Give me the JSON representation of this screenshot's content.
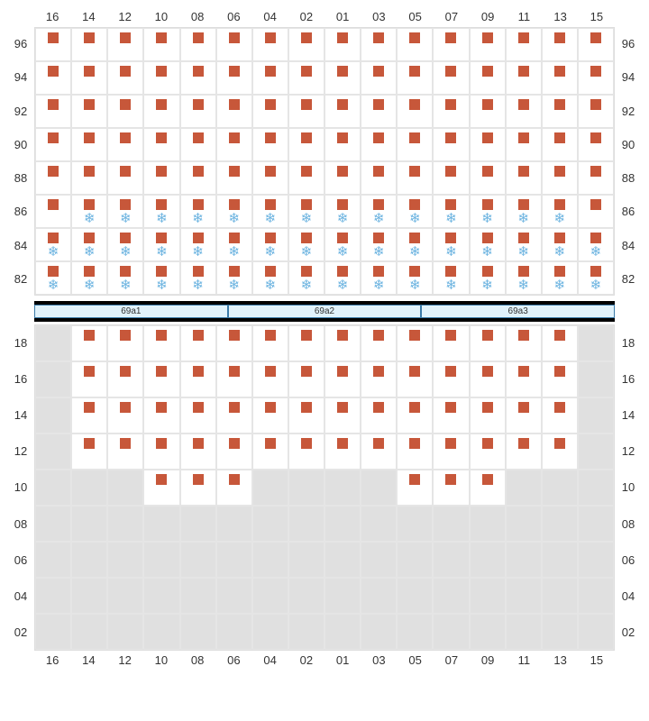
{
  "columns": [
    "16",
    "14",
    "12",
    "10",
    "08",
    "06",
    "04",
    "02",
    "01",
    "03",
    "05",
    "07",
    "09",
    "11",
    "13",
    "15"
  ],
  "top_rows": [
    "96",
    "94",
    "92",
    "90",
    "88",
    "86",
    "84",
    "82"
  ],
  "bottom_rows": [
    "18",
    "16",
    "14",
    "12",
    "10",
    "08",
    "06",
    "04",
    "02"
  ],
  "colors": {
    "marker": "#c7573a",
    "snow": "#6bb3e0",
    "grid_border": "#e5e5e5",
    "empty_bg": "#e0e0e0",
    "sep_bg": "#e1f2fb",
    "sep_border": "#3a7aa8"
  },
  "top_cells": [
    [
      {
        "m": 1
      },
      {
        "m": 1
      },
      {
        "m": 1
      },
      {
        "m": 1
      },
      {
        "m": 1
      },
      {
        "m": 1
      },
      {
        "m": 1
      },
      {
        "m": 1
      },
      {
        "m": 1
      },
      {
        "m": 1
      },
      {
        "m": 1
      },
      {
        "m": 1
      },
      {
        "m": 1
      },
      {
        "m": 1
      },
      {
        "m": 1
      },
      {
        "m": 1
      }
    ],
    [
      {
        "m": 1
      },
      {
        "m": 1
      },
      {
        "m": 1
      },
      {
        "m": 1
      },
      {
        "m": 1
      },
      {
        "m": 1
      },
      {
        "m": 1
      },
      {
        "m": 1
      },
      {
        "m": 1
      },
      {
        "m": 1
      },
      {
        "m": 1
      },
      {
        "m": 1
      },
      {
        "m": 1
      },
      {
        "m": 1
      },
      {
        "m": 1
      },
      {
        "m": 1
      }
    ],
    [
      {
        "m": 1
      },
      {
        "m": 1
      },
      {
        "m": 1
      },
      {
        "m": 1
      },
      {
        "m": 1
      },
      {
        "m": 1
      },
      {
        "m": 1
      },
      {
        "m": 1
      },
      {
        "m": 1
      },
      {
        "m": 1
      },
      {
        "m": 1
      },
      {
        "m": 1
      },
      {
        "m": 1
      },
      {
        "m": 1
      },
      {
        "m": 1
      },
      {
        "m": 1
      }
    ],
    [
      {
        "m": 1
      },
      {
        "m": 1
      },
      {
        "m": 1
      },
      {
        "m": 1
      },
      {
        "m": 1
      },
      {
        "m": 1
      },
      {
        "m": 1
      },
      {
        "m": 1
      },
      {
        "m": 1
      },
      {
        "m": 1
      },
      {
        "m": 1
      },
      {
        "m": 1
      },
      {
        "m": 1
      },
      {
        "m": 1
      },
      {
        "m": 1
      },
      {
        "m": 1
      }
    ],
    [
      {
        "m": 1
      },
      {
        "m": 1
      },
      {
        "m": 1
      },
      {
        "m": 1
      },
      {
        "m": 1
      },
      {
        "m": 1
      },
      {
        "m": 1
      },
      {
        "m": 1
      },
      {
        "m": 1
      },
      {
        "m": 1
      },
      {
        "m": 1
      },
      {
        "m": 1
      },
      {
        "m": 1
      },
      {
        "m": 1
      },
      {
        "m": 1
      },
      {
        "m": 1
      }
    ],
    [
      {
        "m": 1
      },
      {
        "m": 1,
        "s": 1
      },
      {
        "m": 1,
        "s": 1
      },
      {
        "m": 1,
        "s": 1
      },
      {
        "m": 1,
        "s": 1
      },
      {
        "m": 1,
        "s": 1
      },
      {
        "m": 1,
        "s": 1
      },
      {
        "m": 1,
        "s": 1
      },
      {
        "m": 1,
        "s": 1
      },
      {
        "m": 1,
        "s": 1
      },
      {
        "m": 1,
        "s": 1
      },
      {
        "m": 1,
        "s": 1
      },
      {
        "m": 1,
        "s": 1
      },
      {
        "m": 1,
        "s": 1
      },
      {
        "m": 1,
        "s": 1
      },
      {
        "m": 1
      }
    ],
    [
      {
        "m": 1,
        "s": 1
      },
      {
        "m": 1,
        "s": 1
      },
      {
        "m": 1,
        "s": 1
      },
      {
        "m": 1,
        "s": 1
      },
      {
        "m": 1,
        "s": 1
      },
      {
        "m": 1,
        "s": 1
      },
      {
        "m": 1,
        "s": 1
      },
      {
        "m": 1,
        "s": 1
      },
      {
        "m": 1,
        "s": 1
      },
      {
        "m": 1,
        "s": 1
      },
      {
        "m": 1,
        "s": 1
      },
      {
        "m": 1,
        "s": 1
      },
      {
        "m": 1,
        "s": 1
      },
      {
        "m": 1,
        "s": 1
      },
      {
        "m": 1,
        "s": 1
      },
      {
        "m": 1,
        "s": 1
      }
    ],
    [
      {
        "m": 1,
        "s": 1
      },
      {
        "m": 1,
        "s": 1
      },
      {
        "m": 1,
        "s": 1
      },
      {
        "m": 1,
        "s": 1
      },
      {
        "m": 1,
        "s": 1
      },
      {
        "m": 1,
        "s": 1
      },
      {
        "m": 1,
        "s": 1
      },
      {
        "m": 1,
        "s": 1
      },
      {
        "m": 1,
        "s": 1
      },
      {
        "m": 1,
        "s": 1
      },
      {
        "m": 1,
        "s": 1
      },
      {
        "m": 1,
        "s": 1
      },
      {
        "m": 1,
        "s": 1
      },
      {
        "m": 1,
        "s": 1
      },
      {
        "m": 1,
        "s": 1
      },
      {
        "m": 1,
        "s": 1
      }
    ]
  ],
  "bottom_cells": [
    [
      {
        "e": 1
      },
      {
        "m": 1
      },
      {
        "m": 1
      },
      {
        "m": 1
      },
      {
        "m": 1
      },
      {
        "m": 1
      },
      {
        "m": 1
      },
      {
        "m": 1
      },
      {
        "m": 1
      },
      {
        "m": 1
      },
      {
        "m": 1
      },
      {
        "m": 1
      },
      {
        "m": 1
      },
      {
        "m": 1
      },
      {
        "m": 1
      },
      {
        "e": 1
      }
    ],
    [
      {
        "e": 1
      },
      {
        "m": 1
      },
      {
        "m": 1
      },
      {
        "m": 1
      },
      {
        "m": 1
      },
      {
        "m": 1
      },
      {
        "m": 1
      },
      {
        "m": 1
      },
      {
        "m": 1
      },
      {
        "m": 1
      },
      {
        "m": 1
      },
      {
        "m": 1
      },
      {
        "m": 1
      },
      {
        "m": 1
      },
      {
        "m": 1
      },
      {
        "e": 1
      }
    ],
    [
      {
        "e": 1
      },
      {
        "m": 1
      },
      {
        "m": 1
      },
      {
        "m": 1
      },
      {
        "m": 1
      },
      {
        "m": 1
      },
      {
        "m": 1
      },
      {
        "m": 1
      },
      {
        "m": 1
      },
      {
        "m": 1
      },
      {
        "m": 1
      },
      {
        "m": 1
      },
      {
        "m": 1
      },
      {
        "m": 1
      },
      {
        "m": 1
      },
      {
        "e": 1
      }
    ],
    [
      {
        "e": 1
      },
      {
        "m": 1
      },
      {
        "m": 1
      },
      {
        "m": 1
      },
      {
        "m": 1
      },
      {
        "m": 1
      },
      {
        "m": 1
      },
      {
        "m": 1
      },
      {
        "m": 1
      },
      {
        "m": 1
      },
      {
        "m": 1
      },
      {
        "m": 1
      },
      {
        "m": 1
      },
      {
        "m": 1
      },
      {
        "m": 1
      },
      {
        "e": 1
      }
    ],
    [
      {
        "e": 1
      },
      {
        "e": 1
      },
      {
        "e": 1
      },
      {
        "m": 1
      },
      {
        "m": 1
      },
      {
        "m": 1
      },
      {
        "e": 1
      },
      {
        "e": 1
      },
      {
        "e": 1
      },
      {
        "e": 1
      },
      {
        "m": 1
      },
      {
        "m": 1
      },
      {
        "m": 1
      },
      {
        "e": 1
      },
      {
        "e": 1
      },
      {
        "e": 1
      }
    ],
    [
      {
        "e": 1
      },
      {
        "e": 1
      },
      {
        "e": 1
      },
      {
        "e": 1
      },
      {
        "e": 1
      },
      {
        "e": 1
      },
      {
        "e": 1
      },
      {
        "e": 1
      },
      {
        "e": 1
      },
      {
        "e": 1
      },
      {
        "e": 1
      },
      {
        "e": 1
      },
      {
        "e": 1
      },
      {
        "e": 1
      },
      {
        "e": 1
      },
      {
        "e": 1
      }
    ],
    [
      {
        "e": 1
      },
      {
        "e": 1
      },
      {
        "e": 1
      },
      {
        "e": 1
      },
      {
        "e": 1
      },
      {
        "e": 1
      },
      {
        "e": 1
      },
      {
        "e": 1
      },
      {
        "e": 1
      },
      {
        "e": 1
      },
      {
        "e": 1
      },
      {
        "e": 1
      },
      {
        "e": 1
      },
      {
        "e": 1
      },
      {
        "e": 1
      },
      {
        "e": 1
      }
    ],
    [
      {
        "e": 1
      },
      {
        "e": 1
      },
      {
        "e": 1
      },
      {
        "e": 1
      },
      {
        "e": 1
      },
      {
        "e": 1
      },
      {
        "e": 1
      },
      {
        "e": 1
      },
      {
        "e": 1
      },
      {
        "e": 1
      },
      {
        "e": 1
      },
      {
        "e": 1
      },
      {
        "e": 1
      },
      {
        "e": 1
      },
      {
        "e": 1
      },
      {
        "e": 1
      }
    ],
    [
      {
        "e": 1
      },
      {
        "e": 1
      },
      {
        "e": 1
      },
      {
        "e": 1
      },
      {
        "e": 1
      },
      {
        "e": 1
      },
      {
        "e": 1
      },
      {
        "e": 1
      },
      {
        "e": 1
      },
      {
        "e": 1
      },
      {
        "e": 1
      },
      {
        "e": 1
      },
      {
        "e": 1
      },
      {
        "e": 1
      },
      {
        "e": 1
      },
      {
        "e": 1
      }
    ]
  ],
  "separator": [
    "69a1",
    "69a2",
    "69a3"
  ],
  "layout": {
    "top_row_height": 37,
    "bottom_row_height": 40,
    "cell_marker_size": 12,
    "snow_glyph": "❄"
  }
}
